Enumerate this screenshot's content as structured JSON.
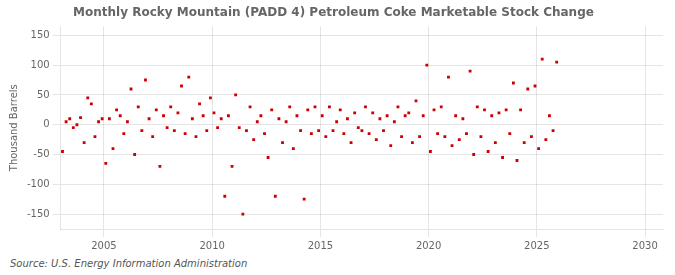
{
  "chart_data": {
    "type": "scatter",
    "title": "Monthly Rocky Mountain (PADD 4) Petroleum Coke Marketable Stock Change",
    "ylabel": "Thousand Barrels",
    "annotations": [
      "Source: U.S. Energy Information Administration"
    ],
    "color": "#cc0000",
    "marker": "square",
    "grid": true,
    "ylim": [
      -175,
      165
    ],
    "yticks": [
      -150,
      -100,
      -50,
      0,
      50,
      100,
      150
    ],
    "xlim": [
      2003.0,
      2030.83
    ],
    "xticks": [
      2005,
      2010,
      2015,
      2020,
      2025,
      2030
    ],
    "x": [
      2003.083,
      2003.25,
      2003.417,
      2003.583,
      2003.75,
      2003.917,
      2004.083,
      2004.25,
      2004.417,
      2004.583,
      2004.75,
      2004.917,
      2005.083,
      2005.25,
      2005.417,
      2005.583,
      2005.75,
      2005.917,
      2006.083,
      2006.25,
      2006.417,
      2006.583,
      2006.75,
      2006.917,
      2007.083,
      2007.25,
      2007.417,
      2007.583,
      2007.75,
      2007.917,
      2008.083,
      2008.25,
      2008.417,
      2008.583,
      2008.75,
      2008.917,
      2009.083,
      2009.25,
      2009.417,
      2009.583,
      2009.75,
      2009.917,
      2010.083,
      2010.25,
      2010.417,
      2010.583,
      2010.75,
      2010.917,
      2011.083,
      2011.25,
      2011.417,
      2011.583,
      2011.75,
      2011.917,
      2012.083,
      2012.25,
      2012.417,
      2012.583,
      2012.75,
      2012.917,
      2013.083,
      2013.25,
      2013.417,
      2013.583,
      2013.75,
      2013.917,
      2014.083,
      2014.25,
      2014.417,
      2014.583,
      2014.75,
      2014.917,
      2015.083,
      2015.25,
      2015.417,
      2015.583,
      2015.75,
      2015.917,
      2016.083,
      2016.25,
      2016.417,
      2016.583,
      2016.75,
      2016.917,
      2017.083,
      2017.25,
      2017.417,
      2017.583,
      2017.75,
      2017.917,
      2018.083,
      2018.25,
      2018.417,
      2018.583,
      2018.75,
      2018.917,
      2019.083,
      2019.25,
      2019.417,
      2019.583,
      2019.75,
      2019.917,
      2020.083,
      2020.25,
      2020.417,
      2020.583,
      2020.75,
      2020.917,
      2021.083,
      2021.25,
      2021.417,
      2021.583,
      2021.75,
      2021.917,
      2022.083,
      2022.25,
      2022.417,
      2022.583,
      2022.75,
      2022.917,
      2023.083,
      2023.25,
      2023.417,
      2023.583,
      2023.75,
      2023.917,
      2024.083,
      2024.25,
      2024.417,
      2024.583,
      2024.75,
      2024.917,
      2025.083,
      2025.25,
      2025.417,
      2025.583,
      2025.75,
      2025.917
    ],
    "values": [
      -45,
      5,
      10,
      -5,
      0,
      12,
      -30,
      45,
      35,
      -20,
      5,
      10,
      -65,
      10,
      -40,
      25,
      15,
      -15,
      5,
      60,
      -50,
      30,
      -10,
      75,
      10,
      -20,
      25,
      -70,
      15,
      -5,
      30,
      -10,
      20,
      65,
      -15,
      80,
      10,
      -20,
      35,
      15,
      -10,
      45,
      20,
      -5,
      10,
      -120,
      15,
      -70,
      50,
      -5,
      -150,
      -10,
      30,
      -25,
      5,
      15,
      -15,
      -55,
      25,
      -120,
      10,
      -30,
      5,
      30,
      -40,
      15,
      -10,
      -125,
      25,
      -15,
      30,
      -10,
      15,
      -20,
      30,
      -10,
      5,
      25,
      -15,
      10,
      -30,
      20,
      -5,
      -10,
      30,
      -15,
      20,
      -25,
      10,
      -10,
      15,
      -35,
      5,
      30,
      -20,
      15,
      20,
      -30,
      40,
      -20,
      15,
      100,
      -45,
      25,
      -15,
      30,
      -20,
      80,
      -35,
      15,
      -25,
      10,
      -15,
      90,
      -50,
      30,
      -20,
      25,
      -45,
      15,
      -30,
      20,
      -55,
      25,
      -15,
      70,
      -60,
      25,
      -30,
      60,
      -20,
      65,
      -40,
      110,
      -25,
      15,
      -10,
      105
    ]
  }
}
